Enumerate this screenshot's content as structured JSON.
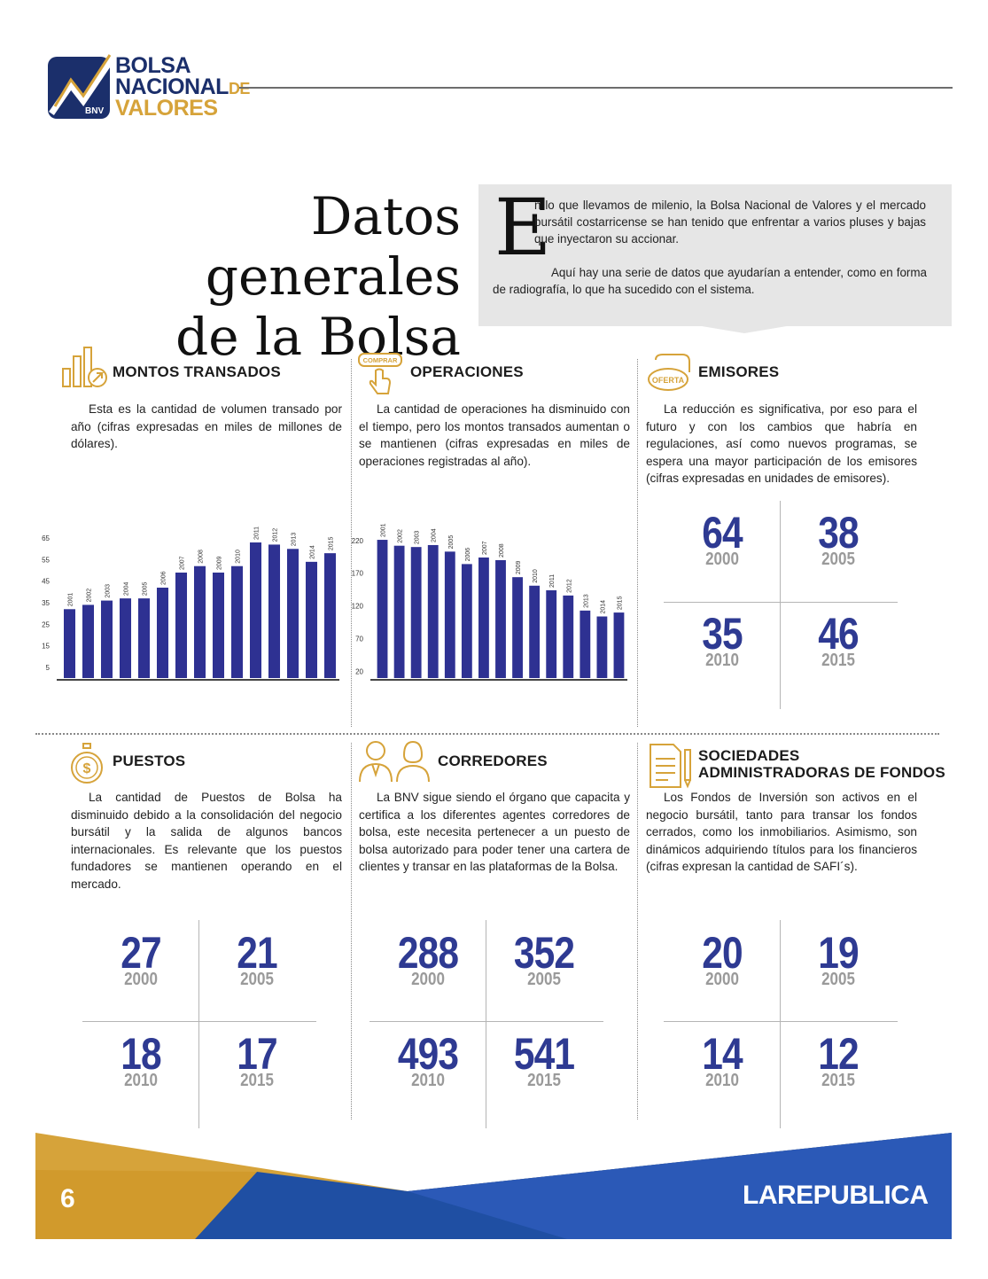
{
  "logo": {
    "line1": "BOLSA",
    "line2": "NACIONAL",
    "line2_small": "DE",
    "line3": "VALORES",
    "badge": "BNV"
  },
  "title": {
    "line1": "Datos generales",
    "line2": "de la Bolsa"
  },
  "intro": {
    "dropcap": "E",
    "p1": "n lo que llevamos de milenio, la Bolsa Nacional de Valores y el mercado bursátil costarricense se han tenido que enfrentar a varios pluses y bajas que inyectaron su accionar.",
    "p2": "Aquí hay una serie de datos que ayudarían a entender, como en forma de radiografía, lo que ha sucedido con el sistema."
  },
  "sections": {
    "montos": {
      "title": "MONTOS TRANSADOS",
      "text": "Esta es la cantidad de volumen transado por año (cifras expresadas en miles de millones de dólares)."
    },
    "operaciones": {
      "title": "OPERACIONES",
      "icon_label": "COMPRAR",
      "text": "La cantidad de operaciones ha disminuido con el tiempo, pero los montos transados aumentan o se mantienen (cifras expresadas en miles de operaciones registradas al año)."
    },
    "emisores": {
      "title": "EMISORES",
      "icon_label": "OFERTA",
      "text": "La reducción es significativa, por eso para el futuro y con los cambios que habría en regulaciones, así como nuevos programas, se espera una mayor participación de los emisores (cifras expresadas en unidades de emisores).",
      "stats": [
        {
          "value": "64",
          "year": "2000"
        },
        {
          "value": "38",
          "year": "2005"
        },
        {
          "value": "35",
          "year": "2010"
        },
        {
          "value": "46",
          "year": "2015"
        }
      ]
    },
    "puestos": {
      "title": "PUESTOS",
      "text": "La cantidad de Puestos de Bolsa ha disminuido debido a la consolidación del negocio bursátil y la salida de algunos bancos internacionales. Es relevante que los puestos fundadores se mantienen operando en el mercado.",
      "stats": [
        {
          "value": "27",
          "year": "2000"
        },
        {
          "value": "21",
          "year": "2005"
        },
        {
          "value": "18",
          "year": "2010"
        },
        {
          "value": "17",
          "year": "2015"
        }
      ]
    },
    "corredores": {
      "title": "CORREDORES",
      "text": "La BNV sigue siendo el órgano que capacita y certifica a los diferentes agentes corredores de bolsa, este necesita pertenecer a un puesto de bolsa autorizado para poder tener una cartera de clientes y transar en las plataformas de la Bolsa.",
      "stats": [
        {
          "value": "288",
          "year": "2000"
        },
        {
          "value": "352",
          "year": "2005"
        },
        {
          "value": "493",
          "year": "2010"
        },
        {
          "value": "541",
          "year": "2015"
        }
      ]
    },
    "sociedades": {
      "title_line1": "SOCIEDADES",
      "title_line2": "ADMINISTRADORAS DE FONDOS",
      "text": "Los Fondos de Inversión son activos en el negocio bursátil, tanto para transar los fondos cerrados, como los inmobiliarios. Asimismo, son dinámicos adquiriendo títulos para los financieros (cifras expresan la cantidad de SAFI´s).",
      "stats": [
        {
          "value": "20",
          "year": "2000"
        },
        {
          "value": "19",
          "year": "2005"
        },
        {
          "value": "14",
          "year": "2010"
        },
        {
          "value": "12",
          "year": "2015"
        }
      ]
    }
  },
  "chart_data": [
    {
      "type": "bar",
      "categories": [
        "2001",
        "2002",
        "2003",
        "2004",
        "2005",
        "2006",
        "2007",
        "2008",
        "2009",
        "2010",
        "2011",
        "2012",
        "2013",
        "2014",
        "2015"
      ],
      "values": [
        32,
        34,
        36,
        37,
        37,
        42,
        49,
        52,
        49,
        52,
        63,
        62,
        60,
        54,
        58
      ],
      "yticks": [
        5,
        15,
        25,
        35,
        45,
        55,
        65
      ],
      "ylim": [
        0,
        70
      ],
      "bar_color": "#2e3192"
    },
    {
      "type": "bar",
      "categories": [
        "2001",
        "2002",
        "2003",
        "2004",
        "2005",
        "2006",
        "2007",
        "2008",
        "2009",
        "2010",
        "2011",
        "2012",
        "2013",
        "2014",
        "2015"
      ],
      "values": [
        221,
        212,
        210,
        213,
        203,
        184,
        194,
        190,
        164,
        151,
        144,
        136,
        113,
        104,
        110
      ],
      "yticks": [
        20,
        70,
        120,
        170,
        220
      ],
      "ylim": [
        10,
        240
      ],
      "bar_color": "#2e3192"
    }
  ],
  "footer": {
    "page": "6",
    "brand": "LAREPUBLICA"
  },
  "colors": {
    "navy": "#2e3a92",
    "gold": "#d6a33a",
    "blue": "#2b59b7"
  }
}
